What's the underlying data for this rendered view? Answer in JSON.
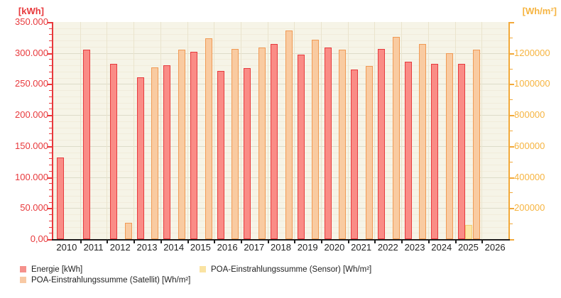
{
  "chart_data": {
    "type": "bar",
    "categories": [
      "2010",
      "2011",
      "2012",
      "2013",
      "2014",
      "2015",
      "2016",
      "2017",
      "2018",
      "2019",
      "2020",
      "2021",
      "2022",
      "2023",
      "2024",
      "2025",
      "2026"
    ],
    "series": [
      {
        "name": "Energie [kWh]",
        "axis": "left",
        "fill": "#fa8c86",
        "border": "#e63b3e",
        "values": [
          132000,
          305000,
          282000,
          261000,
          280000,
          302000,
          271000,
          276000,
          315000,
          297000,
          309000,
          273000,
          306000,
          286000,
          283000,
          282000,
          null
        ]
      },
      {
        "name": "POA-Einstrahlungssumme (Sensor) [Wh/m²]",
        "axis": "right",
        "fill": "#fce6a6",
        "border": "#f3cd74",
        "values": [
          null,
          null,
          null,
          null,
          null,
          null,
          null,
          null,
          null,
          null,
          null,
          null,
          null,
          null,
          null,
          90000,
          null
        ]
      },
      {
        "name": "POA-Einstrahlungssumme (Satellit) [Wh/m²]",
        "axis": "right",
        "fill": "#f9cba1",
        "border": "#f09a55",
        "values": [
          null,
          null,
          106000,
          1106000,
          1220000,
          1296000,
          1224000,
          1234000,
          1344000,
          1286000,
          1222000,
          1118000,
          1304000,
          1256000,
          1198000,
          1220000,
          null
        ]
      }
    ],
    "left_axis": {
      "title": "[kWh]",
      "color": "#e8393c",
      "max": 350000,
      "min": 0,
      "major_step": 50000,
      "minor_step": 10000,
      "ticks": [
        {
          "label": "350.000",
          "value": 350000
        },
        {
          "label": "300.000",
          "value": 300000
        },
        {
          "label": "250.000",
          "value": 250000
        },
        {
          "label": "200.000",
          "value": 200000
        },
        {
          "label": "150.000",
          "value": 150000
        },
        {
          "label": "100.000",
          "value": 100000
        },
        {
          "label": "50.000",
          "value": 50000
        },
        {
          "label": "0,00",
          "value": 0
        }
      ]
    },
    "right_axis": {
      "title": "[Wh/m²]",
      "color": "#f2a93a",
      "label_color": "#f6b440",
      "max": 1400000,
      "min": 0,
      "major_step": 200000,
      "minor_step": 100000,
      "ticks": [
        {
          "label": "1200000",
          "value": 1200000
        },
        {
          "label": "1000000",
          "value": 1000000
        },
        {
          "label": "800000",
          "value": 800000
        },
        {
          "label": "600000",
          "value": 600000
        },
        {
          "label": "400000",
          "value": 400000
        },
        {
          "label": "200000",
          "value": 200000
        }
      ]
    },
    "grid": {
      "on": true,
      "major_color": "#dddcc9",
      "minor_color": "#f1ecdb",
      "vertical_color": "#eae4cd"
    },
    "plot_bg": "#f6f4e7",
    "x_axis_color": "#1f1f1f",
    "legend_position": "bottom"
  },
  "legend": {
    "items": [
      {
        "label": "Energie [kWh]",
        "swatch": "#f5918c",
        "col": 0,
        "row": 0
      },
      {
        "label": "POA-Einstrahlungssumme (Satellit) [Wh/m²]",
        "swatch": "#f8c9a4",
        "col": 0,
        "row": 1
      },
      {
        "label": "POA-Einstrahlungssumme (Sensor) [Wh/m²]",
        "swatch": "#fae3a2",
        "col": 1,
        "row": 0
      }
    ]
  }
}
